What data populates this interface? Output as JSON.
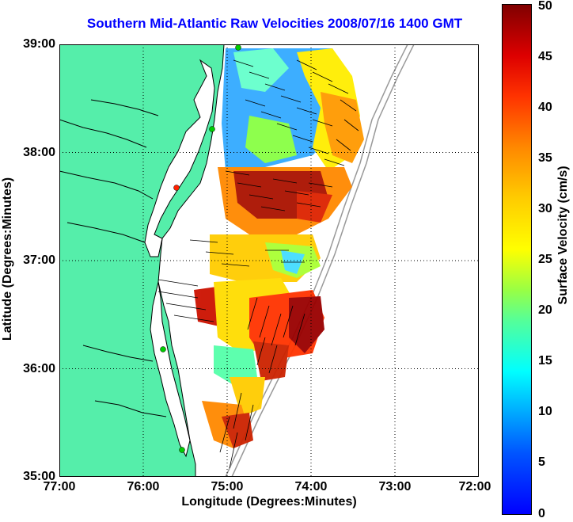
{
  "title": "Southern Mid-Atlantic Raw Velocities 2008/07/16 1400 GMT",
  "axes": {
    "xlabel": "Longitude (Degrees:Minutes)",
    "ylabel": "Latitude (Degrees:Minutes)",
    "xticks": [
      "77:00",
      "76:00",
      "75:00",
      "74:00",
      "73:00",
      "72:00"
    ],
    "yticks": [
      "39:00",
      "38:00",
      "37:00",
      "36:00",
      "35:00"
    ],
    "xlim": [
      -77,
      -72
    ],
    "ylim": [
      35,
      39
    ],
    "grid": "dotted"
  },
  "colorbar": {
    "label": "Surface Velocity (cm/s)",
    "ticks": [
      "50",
      "45",
      "40",
      "35",
      "30",
      "25",
      "20",
      "15",
      "10",
      "5",
      "0"
    ],
    "range": [
      0,
      50
    ],
    "colormap": "jet"
  },
  "colors": {
    "title": "#0000ff",
    "land": "#55eeaa",
    "coastline": "#000000",
    "bathymetry": "#999999",
    "station_green": "#00cc00",
    "station_red": "#ff2200"
  }
}
